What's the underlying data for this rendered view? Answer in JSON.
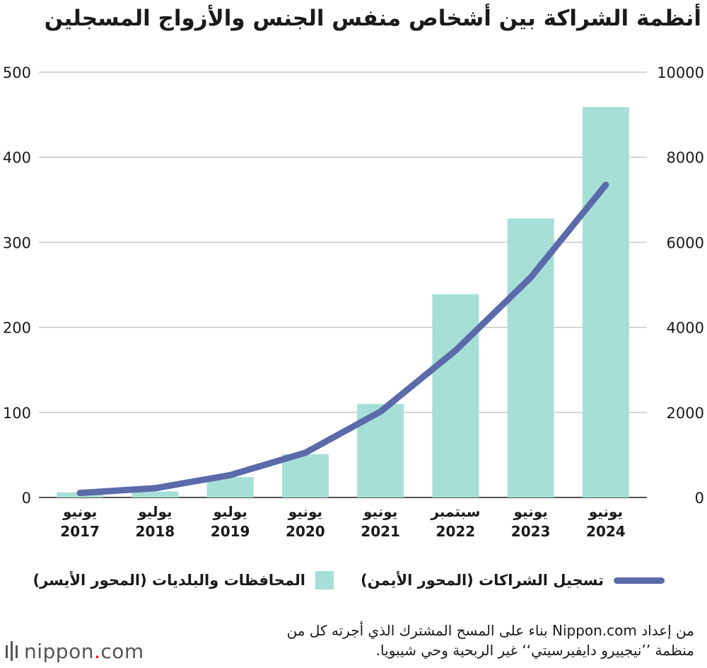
{
  "title": "أنظمة الشراكة بين أشخاص منفس الجنس والأزواج المسجلين",
  "colors": {
    "bar": "#a6dfd6",
    "line": "#5a6aaa",
    "grid": "#c8c8c8",
    "text": "#1a1a1a"
  },
  "chart_data": {
    "type": "bar+line",
    "categories": [
      {
        "line1": "يونيو",
        "line2": "2017"
      },
      {
        "line1": "يوليو",
        "line2": "2018"
      },
      {
        "line1": "يوليو",
        "line2": "2019"
      },
      {
        "line1": "يونيو",
        "line2": "2020"
      },
      {
        "line1": "يونيو",
        "line2": "2021"
      },
      {
        "line1": "سبتمبر",
        "line2": "2022"
      },
      {
        "line1": "يونيو",
        "line2": "2023"
      },
      {
        "line1": "يونيو",
        "line2": "2024"
      }
    ],
    "series": [
      {
        "name": "المحافظات والبلديات (المحور الأيسر)",
        "type": "bar",
        "axis": "left",
        "values": [
          6,
          7,
          24,
          51,
          110,
          239,
          328,
          459
        ]
      },
      {
        "name": "تسجيل الشراكات (المحور الأيمن)",
        "type": "line",
        "axis": "right",
        "values": [
          106,
          218,
          526,
          1052,
          2018,
          3456,
          5172,
          7351
        ]
      }
    ],
    "left_axis": {
      "min": 0,
      "max": 500,
      "ticks": [
        "0",
        "100",
        "200",
        "300",
        "400",
        "500"
      ]
    },
    "right_axis": {
      "min": 0,
      "max": 10000,
      "ticks": [
        "0",
        "2000",
        "4000",
        "6000",
        "8000",
        "10000"
      ]
    },
    "grid": true,
    "legend_position": "bottom"
  },
  "footer": {
    "line1": "من إعداد Nippon.com بناء على المسح المشترك الذي أجرته كل من",
    "line2": "منظمة ’’نيجييرو دايفيرسيتي‘‘ غير الربحية وحي شيبويا."
  },
  "brand": {
    "name": "nippon",
    "dot": ".",
    "suffix": "com",
    "icon": "nippon-logo-icon"
  }
}
